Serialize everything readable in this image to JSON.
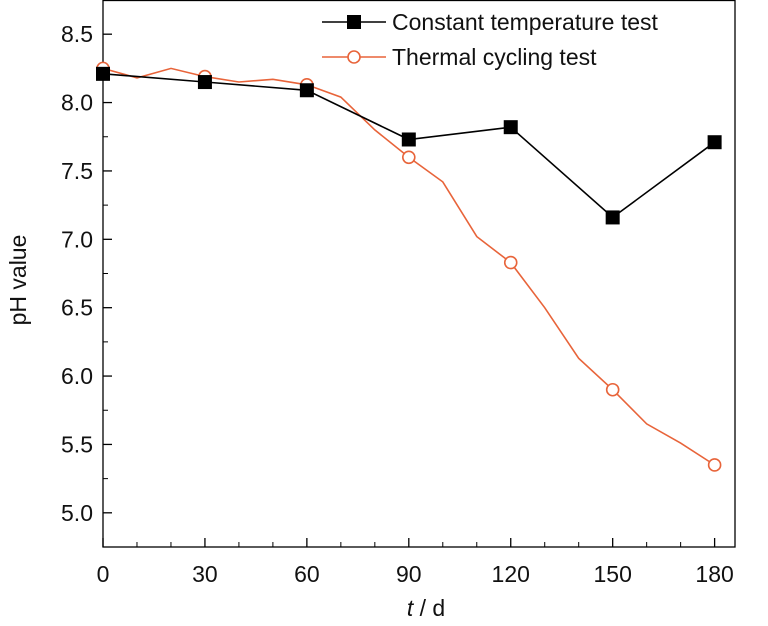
{
  "chart_data": {
    "type": "line",
    "xlabel_var": "t",
    "xlabel_unit": " / d",
    "ylabel": "pH value",
    "xlim": [
      0,
      186
    ],
    "ylim": [
      4.75,
      8.75
    ],
    "xticks": [
      0,
      30,
      60,
      90,
      120,
      150,
      180
    ],
    "yticks": [
      5.0,
      5.5,
      6.0,
      6.5,
      7.0,
      7.5,
      8.0,
      8.5
    ],
    "legend_position": "top-right",
    "grid": false,
    "series": [
      {
        "name": "Constant temperature test",
        "color": "#000000",
        "marker": "filled-square",
        "x": [
          0,
          30,
          60,
          90,
          120,
          150,
          180
        ],
        "y": [
          8.21,
          8.15,
          8.09,
          7.73,
          7.82,
          7.16,
          7.71
        ],
        "marker_x": [
          0,
          30,
          60,
          90,
          120,
          150,
          180
        ]
      },
      {
        "name": "Thermal cycling test",
        "color": "#e8643a",
        "marker": "open-circle",
        "x": [
          0,
          10,
          20,
          30,
          40,
          50,
          60,
          70,
          80,
          90,
          100,
          110,
          120,
          130,
          140,
          150,
          160,
          170,
          180
        ],
        "y": [
          8.25,
          8.18,
          8.25,
          8.19,
          8.15,
          8.17,
          8.13,
          8.04,
          7.8,
          7.6,
          7.42,
          7.02,
          6.83,
          6.5,
          6.13,
          5.9,
          5.65,
          5.51,
          5.35
        ],
        "marker_x": [
          0,
          30,
          60,
          90,
          120,
          150,
          180
        ]
      }
    ]
  }
}
